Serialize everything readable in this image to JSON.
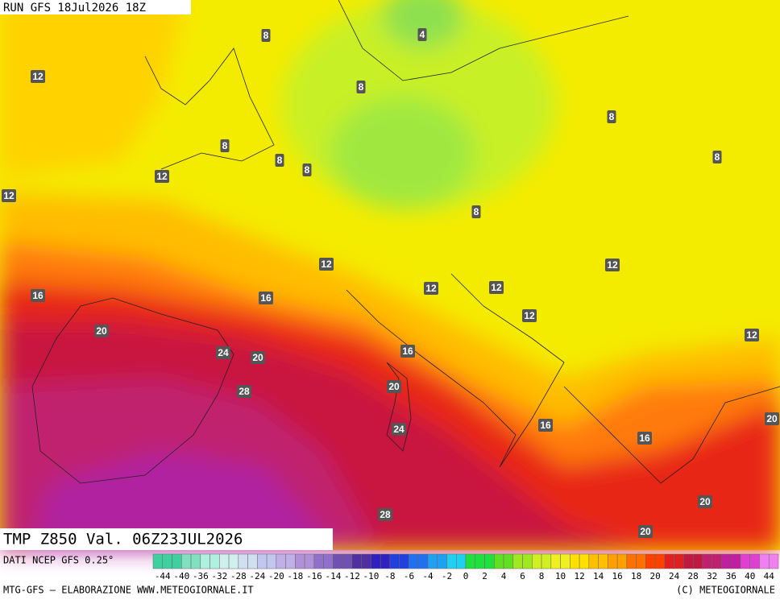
{
  "header": {
    "run": "RUN GFS 18Jul2026 18Z"
  },
  "map": {
    "title": "TMP Z850 Val. 06Z23JUL2026",
    "contour_labels": [
      8,
      4,
      12,
      8,
      8,
      8,
      8,
      8,
      8,
      12,
      12,
      8,
      12,
      12,
      16,
      16,
      12,
      12,
      12,
      20,
      12,
      24,
      20,
      16,
      20,
      28,
      24,
      16,
      20,
      16,
      28,
      20,
      20
    ]
  },
  "legend": {
    "source": "DATI NCEP GFS 0.25°",
    "ticks": [
      -44,
      -40,
      -36,
      -32,
      -28,
      -24,
      -20,
      -18,
      -16,
      -14,
      -12,
      -10,
      -8,
      -6,
      -4,
      -2,
      0,
      2,
      4,
      6,
      8,
      10,
      12,
      14,
      16,
      18,
      20,
      24,
      28,
      32,
      36,
      40,
      44
    ]
  },
  "footer": {
    "left": "MTG-GFS – ELABORAZIONE WWW.METEOGIORNALE.IT",
    "right": "(C) METEOGIORNALE"
  }
}
